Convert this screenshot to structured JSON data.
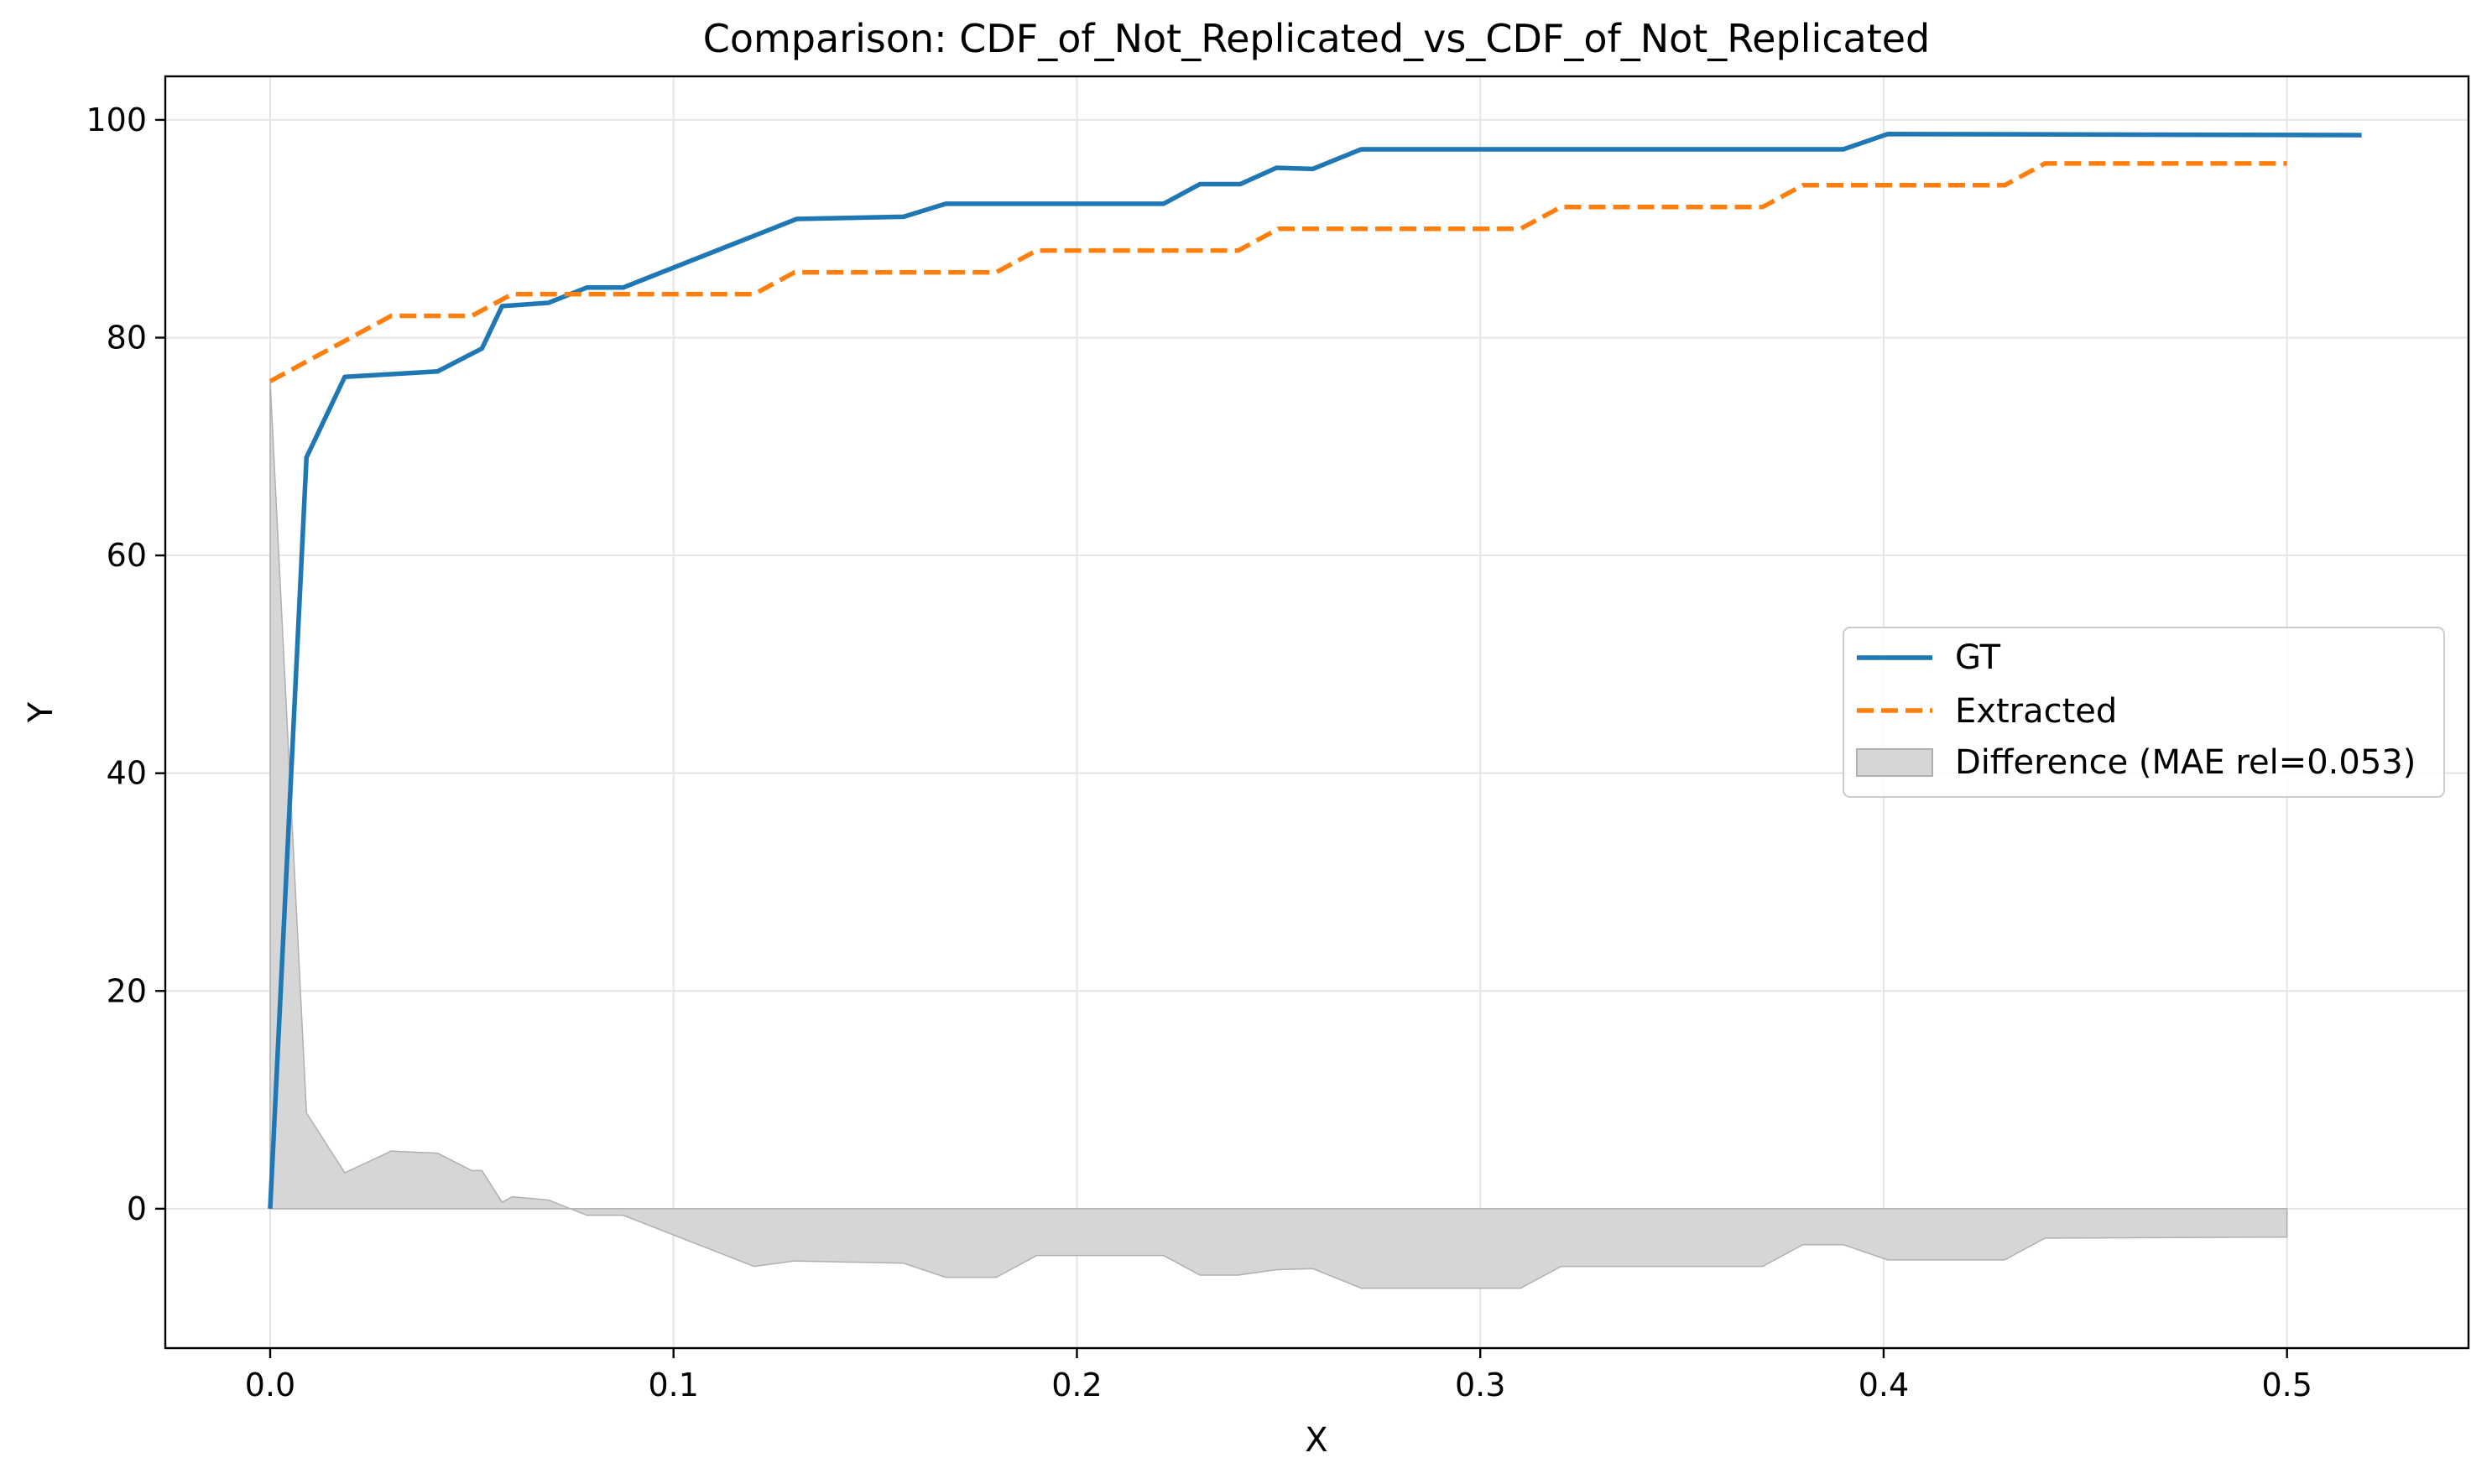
{
  "chart_data": {
    "type": "line",
    "title": "Comparison: CDF_of_Not_Replicated_vs_CDF_of_Not_Replicated",
    "xlabel": "X",
    "ylabel": "Y",
    "xlim": [
      -0.026,
      0.545
    ],
    "ylim": [
      -12.8,
      104.0
    ],
    "x_ticks": [
      0.0,
      0.1,
      0.2,
      0.3,
      0.4,
      0.5
    ],
    "x_tick_labels": [
      "0.0",
      "0.1",
      "0.2",
      "0.3",
      "0.4",
      "0.5"
    ],
    "y_ticks": [
      0,
      20,
      40,
      60,
      80,
      100
    ],
    "y_tick_labels": [
      "0",
      "20",
      "40",
      "60",
      "80",
      "100"
    ],
    "grid": true,
    "legend_position": "center-right",
    "series": [
      {
        "name": "GT",
        "color": "#1f77b4",
        "style": "solid",
        "points": [
          [
            0.0,
            0.0
          ],
          [
            0.009,
            69.0
          ],
          [
            0.0185,
            76.4
          ],
          [
            0.0415,
            76.9
          ],
          [
            0.0525,
            79.0
          ],
          [
            0.0575,
            82.9
          ],
          [
            0.069,
            83.2
          ],
          [
            0.0785,
            84.6
          ],
          [
            0.0875,
            84.6
          ],
          [
            0.1305,
            90.9
          ],
          [
            0.157,
            91.1
          ],
          [
            0.1675,
            92.3
          ],
          [
            0.2215,
            92.3
          ],
          [
            0.2305,
            94.1
          ],
          [
            0.2405,
            94.1
          ],
          [
            0.2495,
            95.6
          ],
          [
            0.2585,
            95.5
          ],
          [
            0.2705,
            97.3
          ],
          [
            0.39,
            97.3
          ],
          [
            0.401,
            98.7
          ],
          [
            0.5185,
            98.6
          ]
        ]
      },
      {
        "name": "Extracted",
        "color": "#ff7f0e",
        "style": "dashed",
        "points": [
          [
            0.0,
            76.0
          ],
          [
            0.03,
            82.0
          ],
          [
            0.05,
            82.0
          ],
          [
            0.06,
            84.0
          ],
          [
            0.12,
            84.0
          ],
          [
            0.13,
            86.0
          ],
          [
            0.18,
            86.0
          ],
          [
            0.19,
            88.0
          ],
          [
            0.24,
            88.0
          ],
          [
            0.25,
            90.0
          ],
          [
            0.31,
            90.0
          ],
          [
            0.32,
            92.0
          ],
          [
            0.37,
            92.0
          ],
          [
            0.38,
            94.0
          ],
          [
            0.43,
            94.0
          ],
          [
            0.44,
            96.0
          ],
          [
            0.5,
            96.0
          ]
        ]
      },
      {
        "name": "Difference (MAE rel=0.053)",
        "type": "area",
        "color": "#d6d6d6",
        "edge_color": "#b0b0b0",
        "baseline": 0,
        "points": [
          [
            0.0,
            76.0
          ],
          [
            0.009,
            8.8
          ],
          [
            0.0185,
            3.3
          ],
          [
            0.03,
            5.3
          ],
          [
            0.0415,
            5.1
          ],
          [
            0.05,
            3.5
          ],
          [
            0.0525,
            3.5
          ],
          [
            0.0575,
            0.6
          ],
          [
            0.06,
            1.1
          ],
          [
            0.069,
            0.8
          ],
          [
            0.0785,
            -0.6
          ],
          [
            0.0875,
            -0.6
          ],
          [
            0.12,
            -5.3
          ],
          [
            0.13,
            -4.8
          ],
          [
            0.157,
            -5.0
          ],
          [
            0.1675,
            -6.3
          ],
          [
            0.18,
            -6.3
          ],
          [
            0.19,
            -4.3
          ],
          [
            0.2215,
            -4.3
          ],
          [
            0.2305,
            -6.1
          ],
          [
            0.24,
            -6.1
          ],
          [
            0.2495,
            -5.6
          ],
          [
            0.2585,
            -5.5
          ],
          [
            0.2705,
            -7.3
          ],
          [
            0.31,
            -7.3
          ],
          [
            0.32,
            -5.3
          ],
          [
            0.37,
            -5.3
          ],
          [
            0.38,
            -3.3
          ],
          [
            0.39,
            -3.3
          ],
          [
            0.401,
            -4.7
          ],
          [
            0.43,
            -4.7
          ],
          [
            0.44,
            -2.7
          ],
          [
            0.5,
            -2.6
          ]
        ]
      }
    ]
  }
}
